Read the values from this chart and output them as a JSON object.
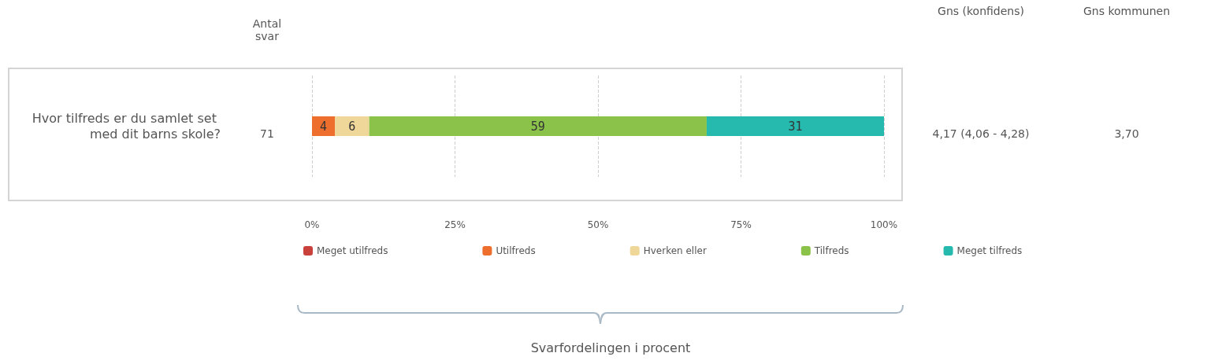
{
  "chart_data": {
    "type": "bar",
    "orientation": "horizontal",
    "stacked": true,
    "categories": [
      "Hvor tilfreds er du samlet set med dit barns skole?"
    ],
    "series": [
      {
        "name": "Meget utilfreds",
        "color": "#c8413a",
        "values": [
          0
        ],
        "value_labels": [
          null
        ]
      },
      {
        "name": "Utilfreds",
        "color": "#ee6e2e",
        "values": [
          4
        ],
        "value_labels": [
          "4"
        ]
      },
      {
        "name": "Hverken eller",
        "color": "#efd699",
        "values": [
          6
        ],
        "value_labels": [
          "6"
        ]
      },
      {
        "name": "Tilfreds",
        "color": "#8bc34a",
        "values": [
          59
        ],
        "value_labels": [
          "59"
        ]
      },
      {
        "name": "Meget tilfreds",
        "color": "#26b9ae",
        "values": [
          31
        ],
        "value_labels": [
          "31"
        ]
      }
    ],
    "xlim": [
      0,
      100
    ],
    "xticks": [
      {
        "value": 0,
        "label": "0%"
      },
      {
        "value": 25,
        "label": "25%"
      },
      {
        "value": 50,
        "label": "50%"
      },
      {
        "value": 75,
        "label": "75%"
      },
      {
        "value": 100,
        "label": "100%"
      }
    ],
    "grid": "x",
    "legend": "bottom",
    "annotations": [
      "Antal svar",
      "71",
      "Gns (konfidens)",
      "4,17 (4,06 - 4,28)",
      "Gns kommunen",
      "3,70",
      "Svarfordelingen i procent"
    ]
  }
}
